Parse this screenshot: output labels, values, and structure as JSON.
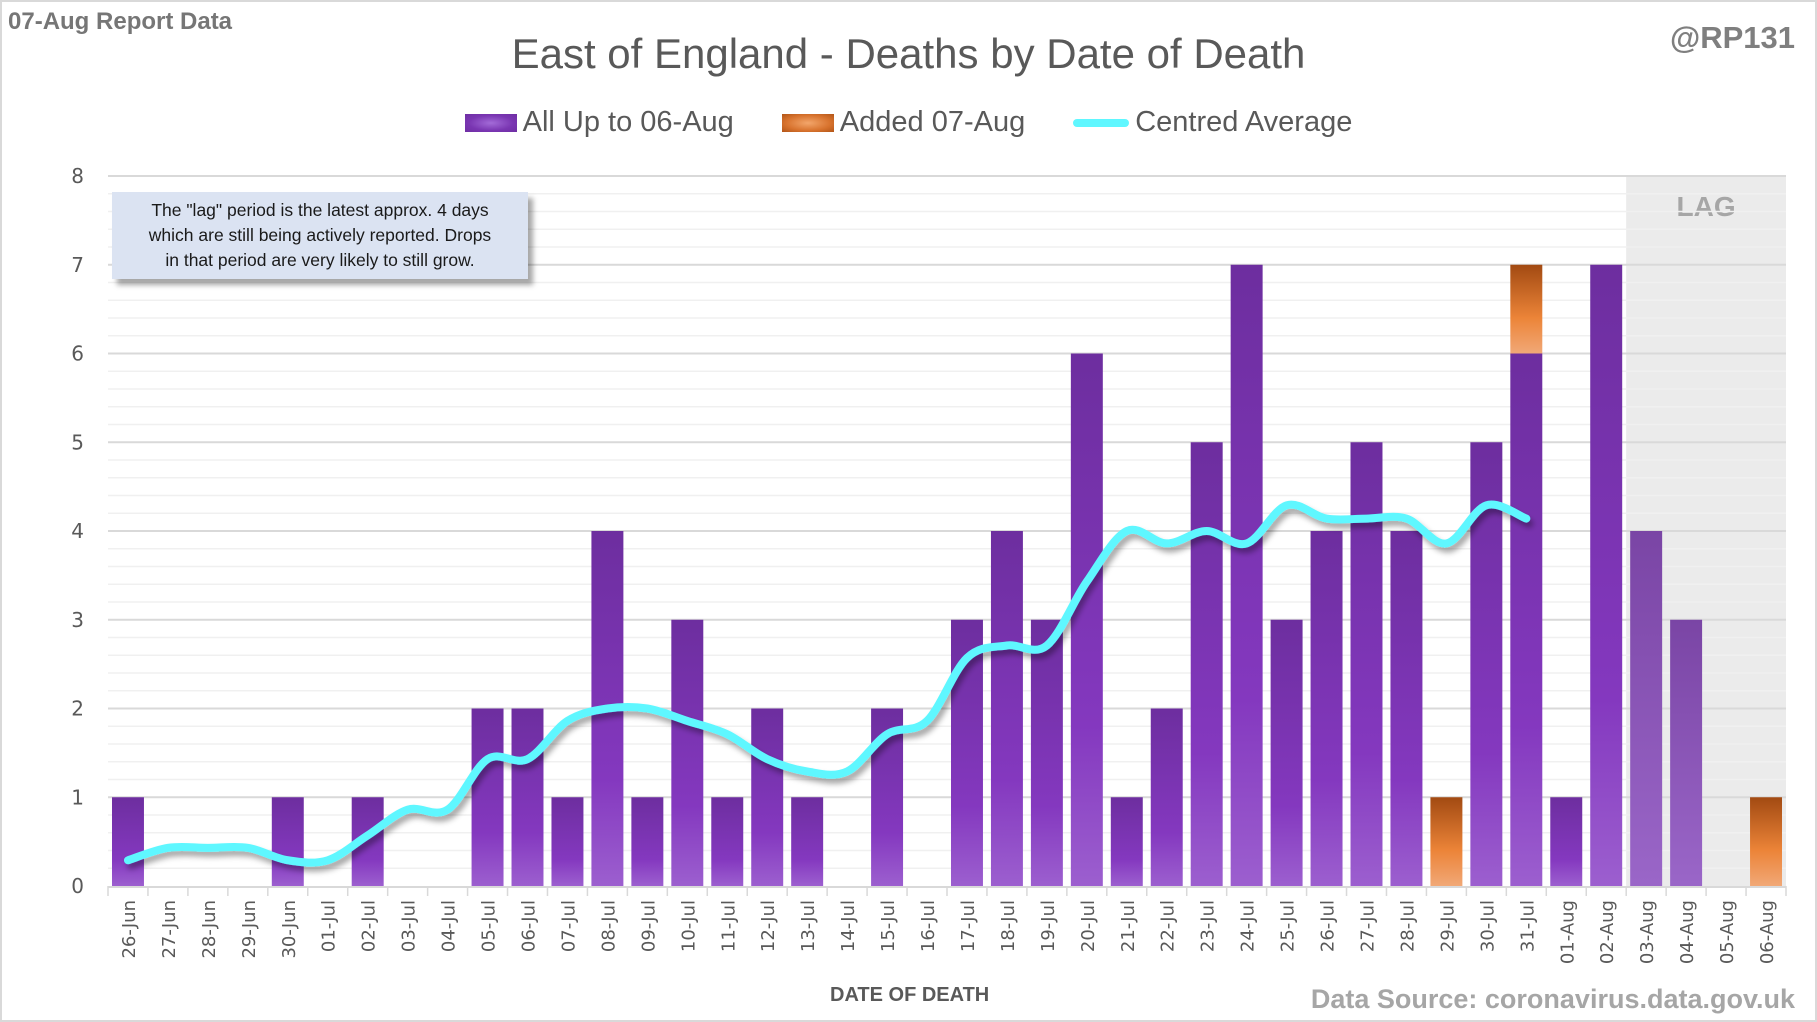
{
  "header": {
    "report_tag": "07-Aug Report Data",
    "handle": "@RP131"
  },
  "annotation": {
    "note_lines": [
      "The \"lag\" period is the latest approx. 4 days",
      "which are still being actively reported.  Drops",
      "in that period are very likely to still grow."
    ],
    "lag_label": "LAG"
  },
  "footer": {
    "source": "Data Source: coronavirus.data.gov.uk"
  },
  "colors": {
    "base_series": "#7a36b2",
    "added_series": "#e07b35",
    "average_line": "#5ff7ff",
    "lag_region": "#ebebeb"
  },
  "chart_data": {
    "type": "bar",
    "stacked": true,
    "title": "East of England - Deaths by Date of Death",
    "xlabel": "DATE OF DEATH",
    "ylabel": "",
    "ylim": [
      0,
      8
    ],
    "yticks": [
      0,
      1,
      2,
      3,
      4,
      5,
      6,
      7,
      8
    ],
    "grid": true,
    "legend_position": "top-center",
    "lag_region": {
      "from": "03-Aug",
      "to": "06-Aug",
      "label": "LAG"
    },
    "categories": [
      "26-Jun",
      "27-Jun",
      "28-Jun",
      "29-Jun",
      "30-Jun",
      "01-Jul",
      "02-Jul",
      "03-Jul",
      "04-Jul",
      "05-Jul",
      "06-Jul",
      "07-Jul",
      "08-Jul",
      "09-Jul",
      "10-Jul",
      "11-Jul",
      "12-Jul",
      "13-Jul",
      "14-Jul",
      "15-Jul",
      "16-Jul",
      "17-Jul",
      "18-Jul",
      "19-Jul",
      "20-Jul",
      "21-Jul",
      "22-Jul",
      "23-Jul",
      "24-Jul",
      "25-Jul",
      "26-Jul",
      "27-Jul",
      "28-Jul",
      "29-Jul",
      "30-Jul",
      "31-Jul",
      "01-Aug",
      "02-Aug",
      "03-Aug",
      "04-Aug",
      "05-Aug",
      "06-Aug"
    ],
    "series": [
      {
        "name": "All Up to 06-Aug",
        "kind": "bar",
        "values": [
          1,
          0,
          0,
          0,
          1,
          0,
          1,
          0,
          0,
          2,
          2,
          1,
          4,
          1,
          3,
          1,
          2,
          1,
          0,
          2,
          0,
          3,
          4,
          3,
          6,
          1,
          2,
          5,
          7,
          3,
          4,
          5,
          4,
          0,
          5,
          6,
          1,
          7,
          4,
          3,
          0,
          0
        ]
      },
      {
        "name": "Added 07-Aug",
        "kind": "bar",
        "values": [
          0,
          0,
          0,
          0,
          0,
          0,
          0,
          0,
          0,
          0,
          0,
          0,
          0,
          0,
          0,
          0,
          0,
          0,
          0,
          0,
          0,
          0,
          0,
          0,
          0,
          0,
          0,
          0,
          0,
          0,
          0,
          0,
          0,
          1,
          0,
          1,
          0,
          0,
          0,
          0,
          0,
          1
        ]
      },
      {
        "name": "Centred Average",
        "kind": "line",
        "values": [
          0.29,
          0.43,
          0.43,
          0.43,
          0.29,
          0.29,
          0.57,
          0.86,
          0.86,
          1.43,
          1.43,
          1.86,
          2.0,
          2.0,
          1.86,
          1.71,
          1.43,
          1.29,
          1.29,
          1.71,
          1.86,
          2.57,
          2.71,
          2.71,
          3.43,
          4.0,
          3.86,
          4.0,
          3.86,
          4.29,
          4.14,
          4.14,
          4.14,
          3.86,
          4.29,
          4.14,
          null,
          null,
          null,
          null,
          null,
          null
        ]
      }
    ]
  }
}
